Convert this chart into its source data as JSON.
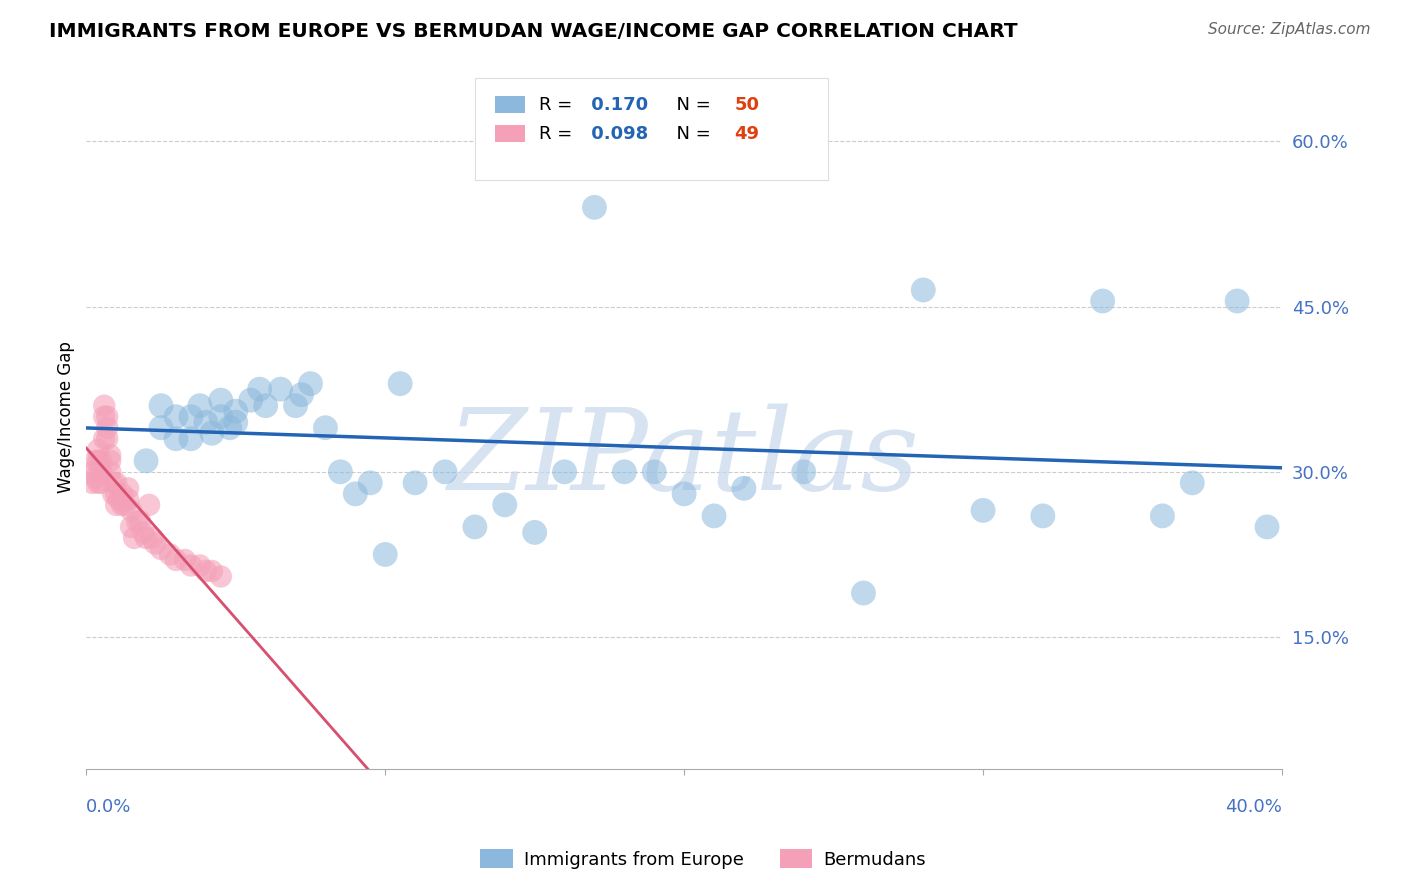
{
  "title": "IMMIGRANTS FROM EUROPE VS BERMUDAN WAGE/INCOME GAP CORRELATION CHART",
  "source": "Source: ZipAtlas.com",
  "ylabel": "Wage/Income Gap",
  "y_ticks": [
    0.15,
    0.3,
    0.45,
    0.6
  ],
  "y_tick_labels": [
    "15.0%",
    "30.0%",
    "45.0%",
    "60.0%"
  ],
  "xlim": [
    0.0,
    0.4
  ],
  "ylim": [
    0.03,
    0.67
  ],
  "blue_color": "#8BB8DC",
  "pink_color": "#F4A0B8",
  "blue_line_color": "#2464B4",
  "pink_line_color": "#D85070",
  "pink_dash_color": "#E8A0B0",
  "watermark_text": "ZIPatlas",
  "watermark_color": "#C8D8EC",
  "blue_R": "0.170",
  "blue_N": "50",
  "pink_R": "0.098",
  "pink_N": "49",
  "blue_scatter_x": [
    0.02,
    0.025,
    0.025,
    0.03,
    0.03,
    0.035,
    0.035,
    0.038,
    0.04,
    0.042,
    0.045,
    0.045,
    0.048,
    0.05,
    0.05,
    0.055,
    0.058,
    0.06,
    0.065,
    0.07,
    0.072,
    0.075,
    0.08,
    0.085,
    0.09,
    0.095,
    0.1,
    0.105,
    0.11,
    0.12,
    0.13,
    0.14,
    0.15,
    0.16,
    0.17,
    0.18,
    0.19,
    0.2,
    0.21,
    0.22,
    0.24,
    0.26,
    0.28,
    0.3,
    0.32,
    0.34,
    0.36,
    0.37,
    0.385,
    0.395
  ],
  "blue_scatter_y": [
    0.31,
    0.34,
    0.36,
    0.33,
    0.35,
    0.33,
    0.35,
    0.36,
    0.345,
    0.335,
    0.35,
    0.365,
    0.34,
    0.345,
    0.355,
    0.365,
    0.375,
    0.36,
    0.375,
    0.36,
    0.37,
    0.38,
    0.34,
    0.3,
    0.28,
    0.29,
    0.225,
    0.38,
    0.29,
    0.3,
    0.25,
    0.27,
    0.245,
    0.3,
    0.54,
    0.3,
    0.3,
    0.28,
    0.26,
    0.285,
    0.3,
    0.19,
    0.465,
    0.265,
    0.26,
    0.455,
    0.26,
    0.29,
    0.455,
    0.25
  ],
  "pink_scatter_x": [
    0.002,
    0.002,
    0.003,
    0.003,
    0.004,
    0.004,
    0.004,
    0.005,
    0.005,
    0.005,
    0.006,
    0.006,
    0.006,
    0.007,
    0.007,
    0.007,
    0.008,
    0.008,
    0.008,
    0.009,
    0.009,
    0.01,
    0.01,
    0.01,
    0.011,
    0.012,
    0.012,
    0.013,
    0.014,
    0.014,
    0.015,
    0.015,
    0.016,
    0.017,
    0.018,
    0.019,
    0.02,
    0.021,
    0.022,
    0.023,
    0.025,
    0.028,
    0.03,
    0.033,
    0.035,
    0.038,
    0.04,
    0.042,
    0.045
  ],
  "pink_scatter_y": [
    0.29,
    0.3,
    0.295,
    0.31,
    0.29,
    0.31,
    0.32,
    0.29,
    0.3,
    0.31,
    0.33,
    0.35,
    0.36,
    0.33,
    0.34,
    0.35,
    0.3,
    0.31,
    0.315,
    0.28,
    0.29,
    0.27,
    0.28,
    0.29,
    0.275,
    0.27,
    0.28,
    0.27,
    0.275,
    0.285,
    0.25,
    0.265,
    0.24,
    0.255,
    0.255,
    0.245,
    0.24,
    0.27,
    0.24,
    0.235,
    0.23,
    0.225,
    0.22,
    0.22,
    0.215,
    0.215,
    0.21,
    0.21,
    0.205
  ]
}
